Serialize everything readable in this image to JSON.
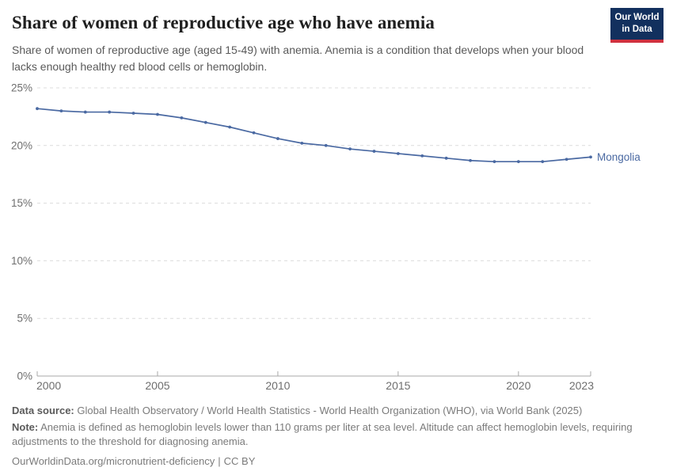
{
  "header": {
    "title": "Share of women of reproductive age who have anemia",
    "subtitle": "Share of women of reproductive age (aged 15-49) with anemia. Anemia is a condition that develops when your blood lacks enough healthy red blood cells or hemoglobin.",
    "logo": {
      "line1": "Our World",
      "line2": "in Data",
      "background_color": "#12305e",
      "accent_color": "#d0313f",
      "text_color": "#ffffff"
    }
  },
  "chart_data": {
    "type": "line",
    "title": "Share of women of reproductive age who have anemia",
    "x": [
      2000,
      2001,
      2002,
      2003,
      2004,
      2005,
      2006,
      2007,
      2008,
      2009,
      2010,
      2011,
      2012,
      2013,
      2014,
      2015,
      2016,
      2017,
      2018,
      2019,
      2020,
      2021,
      2022,
      2023
    ],
    "series": [
      {
        "name": "Mongolia",
        "color": "#4a69a2",
        "values": [
          23.2,
          23.0,
          22.9,
          22.9,
          22.8,
          22.7,
          22.4,
          22.0,
          21.6,
          21.1,
          20.6,
          20.2,
          20.0,
          19.7,
          19.5,
          19.3,
          19.1,
          18.9,
          18.7,
          18.6,
          18.6,
          18.6,
          18.8,
          19.0
        ]
      }
    ],
    "xlabel": "",
    "ylabel": "",
    "xlim": [
      2000,
      2023
    ],
    "ylim": [
      0,
      25
    ],
    "x_ticks": [
      2000,
      2005,
      2010,
      2015,
      2020,
      2023
    ],
    "y_ticks": [
      0,
      5,
      10,
      15,
      20,
      25
    ],
    "y_tick_format": "{}%",
    "grid": "horizontal-dashed",
    "gridline_color": "#dcdcdc",
    "axis_color": "#a8a8a8",
    "tick_label_color": "#6e6e6e",
    "legend_position": "end-of-line-label",
    "markers": true
  },
  "footer": {
    "data_source_label": "Data source:",
    "data_source_text": "Global Health Observatory / World Health Statistics - World Health Organization (WHO), via World Bank (2025)",
    "note_label": "Note:",
    "note_text": "Anemia is defined as hemoglobin levels lower than 110 grams per liter at sea level. Altitude can affect hemoglobin levels, requiring adjustments to the threshold for diagnosing anemia.",
    "url": "OurWorldinData.org/micronutrient-deficiency",
    "separator": "|",
    "license": "CC BY"
  }
}
